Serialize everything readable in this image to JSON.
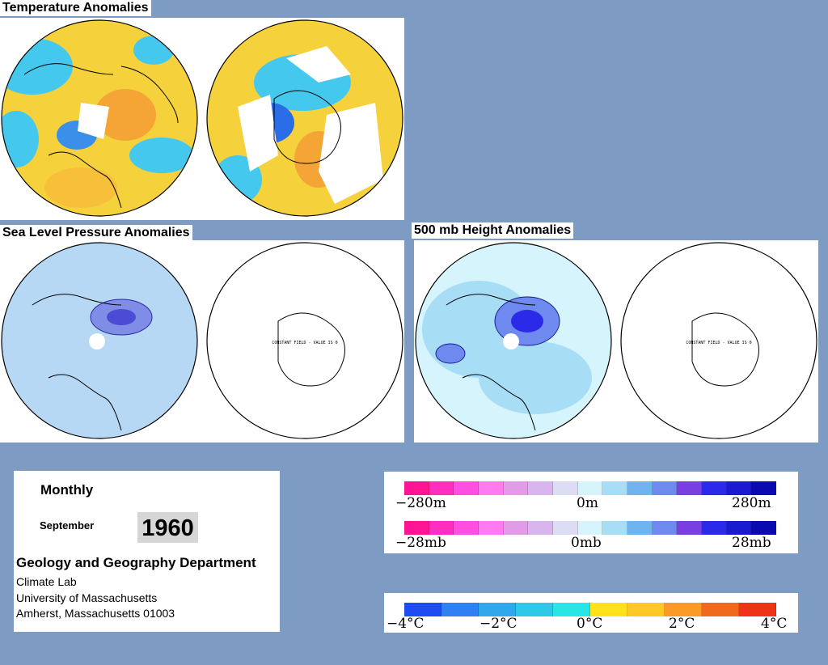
{
  "titles": {
    "temperature": "Temperature Anomalies",
    "slp": "Sea Level Pressure Anomalies",
    "height": "500 mb Height Anomalies"
  },
  "constant_field_note": "CONSTANT FIELD - VALUE IS 0",
  "info": {
    "period": "Monthly",
    "month": "September",
    "year": "1960",
    "department": "Geology and Geography Department",
    "lines": [
      "Climate Lab",
      "University of Massachusetts",
      "Amherst, Massachusetts 01003"
    ]
  },
  "legends": {
    "height": {
      "labels": [
        "−280m",
        "0m",
        "280m"
      ]
    },
    "pressure": {
      "labels": [
        "−28mb",
        "0mb",
        "28mb"
      ]
    },
    "temperature": {
      "labels": [
        "−4°C",
        "−2°C",
        "0°C",
        "2°C",
        "4°C"
      ]
    }
  },
  "colors": {
    "background": "#7d9bc3",
    "anomaly_scale": [
      "#ff1493",
      "#ff2ec0",
      "#ff4fe0",
      "#ff7bef",
      "#e29be6",
      "#d9b5ee",
      "#dcdcf5",
      "#d6f4fb",
      "#a7def6",
      "#6fb4ef",
      "#6f8aee",
      "#7a3fe0",
      "#2a2ae8",
      "#1a1ad0",
      "#0a0ab0"
    ],
    "temperature_scale": [
      "#1f4cf2",
      "#2f80f0",
      "#31a8ec",
      "#2fc8e6",
      "#29e6e6",
      "#ffe21a",
      "#ffc824",
      "#fb9a26",
      "#f06a1e",
      "#ee3318"
    ]
  }
}
